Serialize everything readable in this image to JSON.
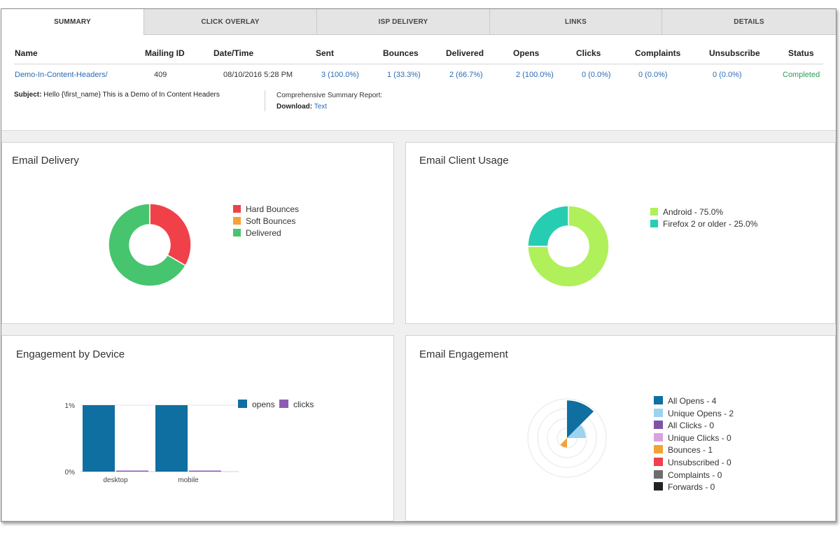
{
  "tabs": [
    {
      "label": "SUMMARY",
      "active": true
    },
    {
      "label": "CLICK OVERLAY",
      "active": false
    },
    {
      "label": "ISP DELIVERY",
      "active": false
    },
    {
      "label": "LINKS",
      "active": false
    },
    {
      "label": "DETAILS",
      "active": false
    }
  ],
  "mailing_table": {
    "headers": [
      "Name",
      "Mailing ID",
      "Date/Time",
      "Sent",
      "Bounces",
      "Delivered",
      "Opens",
      "Clicks",
      "Complaints",
      "Unsubscribe",
      "Status"
    ],
    "row": {
      "name": "Demo-In-Content-Headers/",
      "mailing_id": "409",
      "datetime": "08/10/2016 5:28 PM",
      "sent": "3 (100.0%)",
      "bounces": "1 (33.3%)",
      "delivered": "2 (66.7%)",
      "opens": "2 (100.0%)",
      "clicks": "0 (0.0%)",
      "complaints": "0 (0.0%)",
      "unsubscribe": "0 (0.0%)",
      "status": "Completed"
    }
  },
  "subject": {
    "label": "Subject:",
    "value": "Hello {\\first_name} This is a Demo of In Content Headers"
  },
  "report": {
    "title": "Comprehensive Summary Report:",
    "download_label": "Download:",
    "download_link": "Text"
  },
  "email_delivery": {
    "title": "Email Delivery",
    "legend": [
      "Hard Bounces",
      "Soft Bounces",
      "Delivered"
    ],
    "colors": [
      "#f0414a",
      "#f4a235",
      "#47c46e"
    ]
  },
  "email_client_usage": {
    "title": "Email Client Usage",
    "legend": [
      "Android - 75.0%",
      "Firefox 2 or older - 25.0%"
    ],
    "colors": [
      "#b0f05a",
      "#27cdb1"
    ]
  },
  "engagement_by_device": {
    "title": "Engagement by Device",
    "legend": [
      "opens",
      "clicks"
    ],
    "colors": [
      "#0f6fa1",
      "#8e5bb4"
    ],
    "ytick_top": "1%",
    "ytick_bottom": "0%"
  },
  "email_engagement": {
    "title": "Email Engagement",
    "legend": [
      "All Opens - 4",
      "Unique Opens - 2",
      "All Clicks - 0",
      "Unique Clicks - 0",
      "Bounces - 1",
      "Unsubscribed - 0",
      "Complaints - 0",
      "Forwards - 0"
    ],
    "colors": [
      "#0f6fa1",
      "#9cd3ef",
      "#7d54a6",
      "#d9a2df",
      "#f4a235",
      "#f0414a",
      "#6d6d6d",
      "#222222"
    ]
  },
  "chart_data": [
    {
      "type": "pie",
      "title": "Email Delivery",
      "categories": [
        "Hard Bounces",
        "Soft Bounces",
        "Delivered"
      ],
      "values": [
        1,
        0,
        2
      ],
      "donut": true
    },
    {
      "type": "pie",
      "title": "Email Client Usage",
      "categories": [
        "Android",
        "Firefox 2 or older"
      ],
      "values": [
        75.0,
        25.0
      ],
      "donut": true
    },
    {
      "type": "bar",
      "title": "Engagement by Device",
      "categories": [
        "desktop",
        "mobile"
      ],
      "series": [
        {
          "name": "opens",
          "values": [
            1,
            1
          ]
        },
        {
          "name": "clicks",
          "values": [
            0,
            0
          ]
        }
      ],
      "yticks": [
        "0%",
        "1%"
      ],
      "ylim": [
        0,
        1
      ],
      "legend": "top-right"
    },
    {
      "type": "pie",
      "title": "Email Engagement",
      "categories": [
        "All Opens",
        "Unique Opens",
        "All Clicks",
        "Unique Clicks",
        "Bounces",
        "Unsubscribed",
        "Complaints",
        "Forwards"
      ],
      "values": [
        4,
        2,
        0,
        0,
        1,
        0,
        0,
        0
      ],
      "legend": "right"
    }
  ]
}
